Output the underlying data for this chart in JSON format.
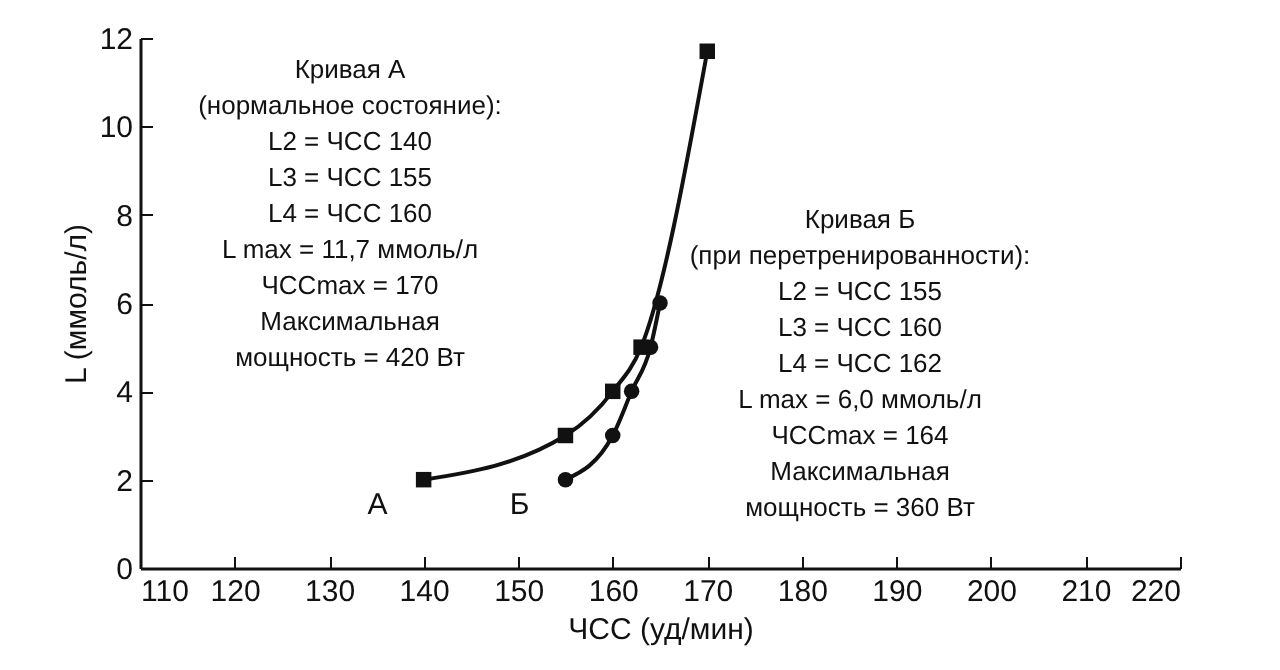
{
  "chart_data": {
    "type": "line",
    "xlabel": "ЧСС (уд/мин)",
    "ylabel": "L (ммоль/л)",
    "xlim": [
      110,
      220
    ],
    "xticks": [
      110,
      120,
      130,
      140,
      150,
      160,
      170,
      180,
      190,
      200,
      210,
      220
    ],
    "ylim": [
      0,
      12
    ],
    "yticks": [
      0,
      2,
      4,
      6,
      8,
      10,
      12
    ],
    "grid": false,
    "series": [
      {
        "name": "А",
        "color": "#111111",
        "marker": "square",
        "x": [
          140,
          155,
          160,
          163,
          170
        ],
        "values": [
          2,
          3,
          4,
          5,
          11.7
        ]
      },
      {
        "name": "Б",
        "color": "#111111",
        "marker": "circle",
        "x": [
          155,
          160,
          162,
          164,
          165
        ],
        "values": [
          2,
          3,
          4,
          5,
          6
        ]
      }
    ],
    "annotations": [
      "Кривая А\n(нормальное состояние):\nL2  = ЧСС 140\nL3  = ЧСС 155\nL4  = ЧСС 160\nL max  = 11,7 ммоль/л\nЧССmax  = 170\nМаксимальная\nмощность  = 420 Вт",
      "Кривая Б\n(при перетренированности):\nL2  = ЧСС 155\nL3  = ЧСС 160\nL4  = ЧСС 162\nL max  = 6,0 ммоль/л\nЧССmax  = 164\nМаксимальная\nмощность  = 360 Вт"
    ]
  }
}
